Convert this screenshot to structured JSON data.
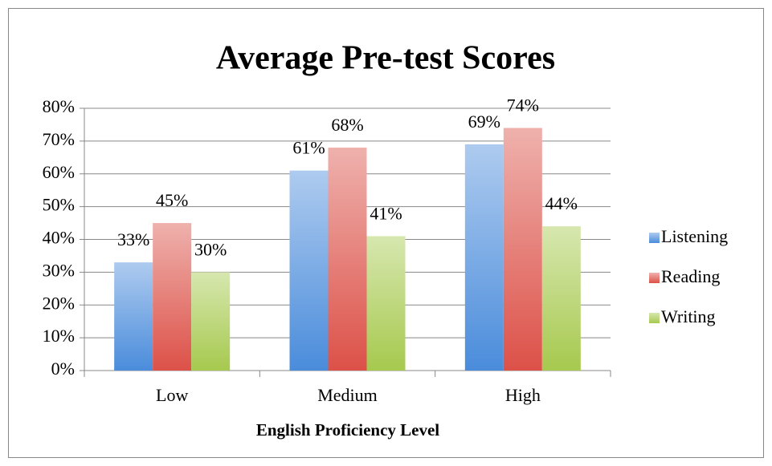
{
  "chart_data": {
    "type": "bar",
    "title": "Average Pre-test Scores",
    "x_label": "English Proficiency Level",
    "categories": [
      "Low",
      "Medium",
      "High"
    ],
    "series": [
      {
        "name": "Listening",
        "color": "#4a8cdb",
        "values": [
          33,
          61,
          69
        ],
        "value_labels": [
          "33%",
          "61%",
          "69%"
        ]
      },
      {
        "name": "Reading",
        "color": "#dc5148",
        "values": [
          45,
          68,
          74
        ],
        "value_labels": [
          "45%",
          "68%",
          "74%"
        ]
      },
      {
        "name": "Writing",
        "color": "#a6c94e",
        "values": [
          30,
          41,
          44
        ],
        "value_labels": [
          "30%",
          "41%",
          "44%"
        ]
      }
    ],
    "ylim": [
      0,
      80
    ],
    "yticks": [
      {
        "value": 0,
        "label": "0%"
      },
      {
        "value": 10,
        "label": "10%"
      },
      {
        "value": 20,
        "label": "20%"
      },
      {
        "value": 30,
        "label": "30%"
      },
      {
        "value": 40,
        "label": "40%"
      },
      {
        "value": 50,
        "label": "50%"
      },
      {
        "value": 60,
        "label": "60%"
      },
      {
        "value": 70,
        "label": "70%"
      },
      {
        "value": 80,
        "label": "80%"
      }
    ],
    "grid": true,
    "legend": "right"
  }
}
